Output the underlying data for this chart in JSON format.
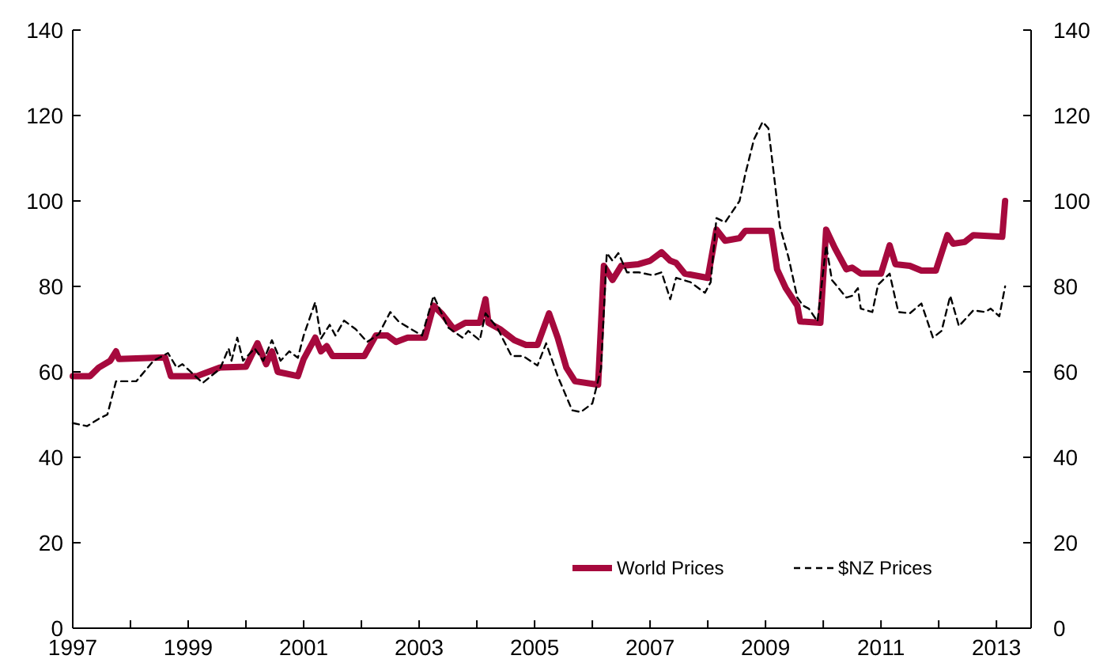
{
  "chart_data": {
    "type": "line",
    "xlim": [
      1997,
      2013.6
    ],
    "xticks": [
      1997,
      {
        "value": 1998,
        "label": null
      },
      1999,
      {
        "value": 2000,
        "label": null
      },
      2001,
      {
        "value": 2002,
        "label": null
      },
      2003,
      {
        "value": 2004,
        "label": null
      },
      2005,
      {
        "value": 2006,
        "label": null
      },
      2007,
      {
        "value": 2008,
        "label": null
      },
      2009,
      {
        "value": 2010,
        "label": null
      },
      2011,
      {
        "value": 2012,
        "label": null
      },
      2013
    ],
    "ylim": [
      0,
      140
    ],
    "yticks": [
      0,
      20,
      40,
      60,
      80,
      100,
      120,
      140
    ],
    "y2lim": [
      0,
      140
    ],
    "y2ticks": [
      0,
      20,
      40,
      60,
      80,
      100,
      120,
      140
    ],
    "grid": false,
    "legend": "bottom right",
    "series": [
      {
        "name": "World Prices",
        "color": "#a6093d",
        "line_style": "solid",
        "x": [
          1997.0,
          1997.3,
          1997.45,
          1997.65,
          1997.75,
          1997.8,
          1998.6,
          1998.7,
          1999.15,
          1999.55,
          2000.0,
          2000.2,
          2000.35,
          2000.45,
          2000.55,
          2000.9,
          2001.0,
          2001.2,
          2001.3,
          2001.4,
          2001.5,
          2002.05,
          2002.25,
          2002.45,
          2002.6,
          2002.8,
          2003.1,
          2003.25,
          2003.4,
          2003.6,
          2003.8,
          2004.05,
          2004.15,
          2004.2,
          2004.4,
          2004.65,
          2004.85,
          2005.05,
          2005.25,
          2005.4,
          2005.55,
          2005.7,
          2006.1,
          2006.2,
          2006.35,
          2006.5,
          2006.8,
          2007.0,
          2007.2,
          2007.35,
          2007.45,
          2007.6,
          2008.0,
          2008.15,
          2008.3,
          2008.55,
          2008.65,
          2009.1,
          2009.2,
          2009.35,
          2009.55,
          2009.6,
          2009.95,
          2010.05,
          2010.2,
          2010.4,
          2010.5,
          2010.65,
          2011.0,
          2011.15,
          2011.25,
          2011.5,
          2011.7,
          2011.95,
          2012.15,
          2012.25,
          2012.45,
          2012.6,
          2013.1,
          2013.15
        ],
        "values": [
          59,
          59,
          61,
          62.6,
          64.8,
          63,
          63.4,
          59,
          59,
          61,
          61.2,
          66.7,
          61.8,
          64.8,
          60,
          59,
          63,
          68,
          64.8,
          66,
          63.7,
          63.7,
          68.5,
          68.5,
          67,
          68,
          68,
          75.5,
          73.5,
          70,
          71.5,
          71.5,
          77,
          71.5,
          70,
          67.4,
          66.3,
          66.3,
          73.7,
          68,
          61,
          57.8,
          57,
          84.8,
          81.5,
          84.8,
          85.2,
          86,
          88,
          86,
          85.5,
          83,
          82,
          93.3,
          90.7,
          91.3,
          93,
          93,
          84,
          79.6,
          75.5,
          71.8,
          71.5,
          93.3,
          89,
          84,
          84.4,
          83,
          83,
          89.6,
          85.2,
          84.8,
          83.7,
          83.7,
          92,
          90,
          90.4,
          92,
          91.6,
          100
        ]
      },
      {
        "name": "$NZ Prices",
        "color": "#000000",
        "line_style": "dashed",
        "x": [
          1997.0,
          1997.25,
          1997.45,
          1997.6,
          1997.75,
          1998.1,
          1998.4,
          1998.65,
          1998.8,
          1998.9,
          1999.25,
          1999.55,
          1999.7,
          1999.75,
          1999.85,
          1999.95,
          2000.15,
          2000.3,
          2000.45,
          2000.6,
          2000.75,
          2000.9,
          2001.0,
          2001.2,
          2001.3,
          2001.45,
          2001.55,
          2001.7,
          2001.9,
          2002.1,
          2002.3,
          2002.5,
          2002.65,
          2003.05,
          2003.25,
          2003.5,
          2003.75,
          2003.85,
          2004.05,
          2004.15,
          2004.35,
          2004.6,
          2004.8,
          2005.05,
          2005.2,
          2005.4,
          2005.65,
          2005.8,
          2006.0,
          2006.15,
          2006.25,
          2006.35,
          2006.45,
          2006.6,
          2006.8,
          2007.05,
          2007.2,
          2007.35,
          2007.45,
          2007.7,
          2007.95,
          2008.05,
          2008.15,
          2008.3,
          2008.55,
          2008.65,
          2008.8,
          2008.95,
          2009.05,
          2009.15,
          2009.25,
          2009.4,
          2009.55,
          2009.65,
          2009.75,
          2009.9,
          2010.05,
          2010.15,
          2010.4,
          2010.5,
          2010.6,
          2010.65,
          2010.85,
          2010.95,
          2011.15,
          2011.3,
          2011.5,
          2011.7,
          2011.9,
          2012.05,
          2012.2,
          2012.35,
          2012.6,
          2012.8,
          2012.9,
          2013.05,
          2013.15
        ],
        "values": [
          48,
          47.3,
          49,
          50,
          57.8,
          57.8,
          62.6,
          64.4,
          61,
          61.8,
          57.4,
          60.7,
          65.5,
          62.6,
          68,
          62.6,
          65.5,
          62.6,
          67.4,
          62.6,
          64.8,
          63.3,
          68.5,
          76.3,
          67.8,
          71,
          68.5,
          72,
          70,
          67,
          68.8,
          74,
          71.7,
          68.5,
          77.8,
          70.4,
          68,
          69.6,
          67.4,
          73.7,
          70.4,
          63.7,
          63.7,
          61.5,
          66.7,
          59,
          51,
          50.6,
          52.6,
          60.7,
          87.8,
          86,
          87.8,
          83.3,
          83.3,
          82.6,
          83.3,
          77,
          82,
          81,
          78.5,
          81,
          96,
          95,
          100,
          106.3,
          114.4,
          118.5,
          117,
          105.6,
          94,
          86.7,
          77.4,
          75.5,
          74.8,
          71.8,
          89.6,
          81.5,
          77.4,
          77.8,
          79.6,
          74.8,
          74,
          80.4,
          83,
          74,
          73.7,
          76,
          68,
          69.6,
          77.8,
          70.7,
          74.4,
          74,
          74.8,
          73,
          80
        ]
      }
    ]
  }
}
